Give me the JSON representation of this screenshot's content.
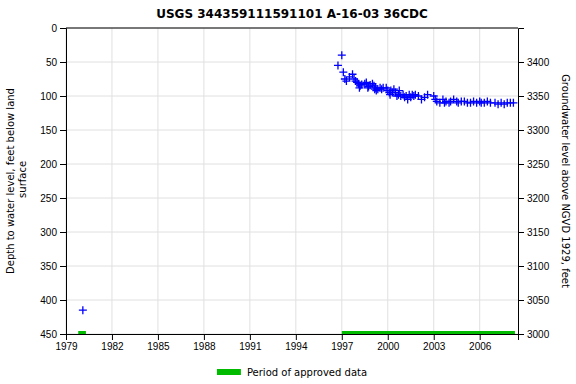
{
  "chart_data": {
    "type": "scatter",
    "title": "USGS 344359111591101 A-16-03 36CDC",
    "ylabel": "Depth to water level, feet below land\n surface",
    "y2label": "Groundwater level above NGVD 1929, feet",
    "xlim": [
      1979,
      2008.5
    ],
    "xticks": [
      1979,
      1982,
      1985,
      1988,
      1991,
      1994,
      1997,
      2000,
      2003,
      2006
    ],
    "ylim": [
      450,
      0
    ],
    "yticks": [
      0,
      50,
      100,
      150,
      200,
      250,
      300,
      350,
      400,
      450
    ],
    "y2lim": [
      3000,
      3450
    ],
    "y2ticks": [
      3000,
      3050,
      3100,
      3150,
      3200,
      3250,
      3300,
      3350,
      3400
    ],
    "grid": true,
    "legend": "bottom",
    "series": [
      {
        "type": "scatter",
        "marker": "plus",
        "color": "#0000ff",
        "x": [
          1996.75,
          1997.0,
          1997.1,
          1997.2,
          1997.3,
          1997.5,
          1997.7,
          1997.8,
          1997.9,
          1998.0,
          1998.1,
          1998.15,
          1998.2,
          1998.3,
          1998.5,
          1998.6,
          1998.7,
          1998.75,
          1998.85,
          1999.0,
          1999.1,
          1999.15,
          1999.2,
          1999.25,
          1999.35,
          1999.5,
          1999.6,
          1999.7,
          1999.9,
          2000.0,
          2000.1,
          2000.15,
          2000.2,
          2000.3,
          2000.4,
          2000.5,
          2000.6,
          2000.7,
          2000.75,
          2000.85,
          2001.0,
          2001.1,
          2001.2,
          2001.3,
          2001.4,
          2001.5,
          2001.6,
          2001.7,
          2001.8,
          2002.0,
          2002.2,
          2002.4,
          2002.6,
          2003.0,
          2003.1,
          2003.2,
          2003.4,
          2003.6,
          2003.7,
          2003.8,
          2004.0,
          2004.1,
          2004.3,
          2004.5,
          2004.6,
          2004.8,
          2005.0,
          2005.2,
          2005.4,
          2005.6,
          2005.8,
          2006.0,
          2006.1,
          2006.3,
          2006.5,
          2006.7,
          2007.0,
          2007.2,
          2007.4,
          2007.6,
          2007.8,
          2008.0,
          2008.2
        ],
        "values": [
          55,
          40,
          65,
          75,
          78,
          72,
          68,
          75,
          78,
          80,
          82,
          88,
          85,
          83,
          82,
          80,
          88,
          86,
          84,
          82,
          85,
          90,
          88,
          92,
          90,
          88,
          90,
          88,
          88,
          92,
          95,
          98,
          92,
          95,
          90,
          95,
          100,
          98,
          92,
          100,
          98,
          102,
          100,
          105,
          98,
          102,
          98,
          100,
          98,
          100,
          105,
          102,
          98,
          100,
          105,
          108,
          110,
          105,
          110,
          108,
          110,
          108,
          105,
          108,
          110,
          108,
          108,
          110,
          110,
          108,
          110,
          108,
          110,
          110,
          108,
          110,
          110,
          112,
          110,
          112,
          110,
          110,
          110
        ]
      },
      {
        "type": "scatter",
        "marker": "plus",
        "color": "#0000ff",
        "x": [
          1980.1
        ],
        "values": [
          415.0
        ]
      },
      {
        "type": "scatter",
        "marker": "square",
        "color": "#0000ff",
        "x": [
          1980.1
        ],
        "values": [
          450.0
        ]
      },
      {
        "name": "Period of approved data",
        "type": "range",
        "color": "#00bb00",
        "start": [
          1997.0,
          1979.8
        ],
        "end": [
          2008.3,
          1980.3
        ],
        "values": [
          450.0,
          450.0
        ]
      }
    ]
  }
}
